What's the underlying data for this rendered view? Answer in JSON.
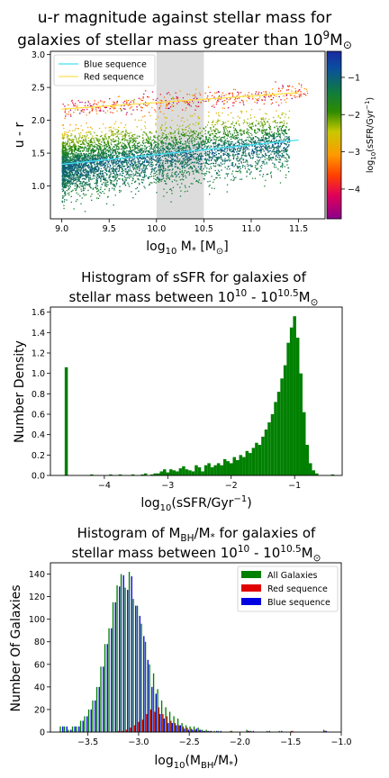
{
  "chart_data": [
    {
      "type": "scatter",
      "title_line1": "u-r magnitude against stellar mass for",
      "title_line2_base": "galaxies of stellar mass greater than 10",
      "title_line2_sup": "9",
      "title_line2_unit": "M",
      "title_line2_unit_sub": "⊙",
      "xlabel_base": "log",
      "xlabel_sub": "10",
      "xlabel_rest": " M",
      "xlabel_sub2": "*",
      "xlabel_unit": " [M",
      "xlabel_unit_sub": "⊙",
      "xlabel_close": "]",
      "ylabel": "u - r",
      "xlim": [
        8.88,
        11.78
      ],
      "ylim": [
        0.5,
        3.05
      ],
      "xticks": [
        "9.0",
        "9.5",
        "10.0",
        "10.5",
        "11.0",
        "11.5"
      ],
      "xtick_values": [
        9.0,
        9.5,
        10.0,
        10.5,
        11.0,
        11.5
      ],
      "yticks": [
        "1.0",
        "1.5",
        "2.0",
        "2.5",
        "3.0"
      ],
      "ytick_values": [
        1.0,
        1.5,
        2.0,
        2.5,
        3.0
      ],
      "shaded_band": [
        10.0,
        10.5
      ],
      "shaded_color": "#dcdcdc",
      "legend": [
        {
          "name": "Blue sequence",
          "color": "#40e0f0"
        },
        {
          "name": "Red sequence",
          "color": "#ffe04a"
        }
      ],
      "blue_sequence_line": {
        "x": [
          9.0,
          11.5
        ],
        "y": [
          1.33,
          1.7
        ]
      },
      "red_sequence_line": {
        "x": [
          9.0,
          11.5
        ],
        "y": [
          2.17,
          2.42
        ]
      },
      "colorbar": {
        "label_base": "log",
        "label_sub": "10",
        "label_rest": "(sSFR/Gyr",
        "label_sup": "−1",
        "label_close": ")",
        "range": [
          -4.8,
          -0.3
        ],
        "ticks": [
          "−1",
          "−2",
          "−3",
          "−4"
        ],
        "tick_values": [
          -1,
          -2,
          -3,
          -4
        ],
        "colormap": [
          "#8a008a",
          "#e0005a",
          "#ff4000",
          "#ff9a00",
          "#c8c800",
          "#2e8b00",
          "#0f7a40",
          "#0a4ea0",
          "#1a2aa0"
        ]
      },
      "point_clusters": [
        {
          "name": "blue-cloud",
          "count": 5200,
          "x_range": [
            9.0,
            11.4
          ],
          "y_center_at_9": 1.33,
          "y_center_at_11_5": 1.7,
          "y_spread": 0.22,
          "ssfr_center": -1.1
        },
        {
          "name": "red-sequence",
          "count": 450,
          "x_range": [
            9.0,
            11.6
          ],
          "y_center_at_9": 2.17,
          "y_center_at_11_5": 2.42,
          "y_spread": 0.07,
          "ssfr_center": -3.8
        }
      ]
    },
    {
      "type": "bar",
      "title_line1": "Histogram of sSFR for galaxies of",
      "title_line2_base": "stellar mass between 10",
      "title_line2_sup1": "10",
      "title_line2_mid": " - 10",
      "title_line2_sup2": "10.5",
      "title_line2_unit": "M",
      "title_line2_unit_sub": "⊙",
      "xlabel_base": "log",
      "xlabel_sub": "10",
      "xlabel_rest": "(sSFR/Gyr",
      "xlabel_sup": "−1",
      "xlabel_close": ")",
      "ylabel": "Number Density",
      "xlim": [
        -4.85,
        -0.25
      ],
      "ylim": [
        0,
        1.65
      ],
      "xticks": [
        "−4",
        "−3",
        "−2",
        "−1"
      ],
      "xtick_values": [
        -4,
        -3,
        -2,
        -1
      ],
      "yticks": [
        "0.0",
        "0.2",
        "0.4",
        "0.6",
        "0.8",
        "1.0",
        "1.2",
        "1.4",
        "1.6"
      ],
      "ytick_values": [
        0.0,
        0.2,
        0.4,
        0.6,
        0.8,
        1.0,
        1.2,
        1.4,
        1.6
      ],
      "bar_color": "#008000",
      "bins": [
        {
          "x": -4.6,
          "v": 1.06
        },
        {
          "x": -4.2,
          "v": 0.01
        },
        {
          "x": -3.9,
          "v": 0.01
        },
        {
          "x": -3.75,
          "v": 0.01
        },
        {
          "x": -3.55,
          "v": 0.01
        },
        {
          "x": -3.4,
          "v": 0.01
        },
        {
          "x": -3.35,
          "v": 0.02
        },
        {
          "x": -3.25,
          "v": 0.01
        },
        {
          "x": -3.2,
          "v": 0.02
        },
        {
          "x": -3.15,
          "v": 0.02
        },
        {
          "x": -3.1,
          "v": 0.04
        },
        {
          "x": -3.05,
          "v": 0.06
        },
        {
          "x": -3.0,
          "v": 0.03
        },
        {
          "x": -2.95,
          "v": 0.06
        },
        {
          "x": -2.9,
          "v": 0.05
        },
        {
          "x": -2.85,
          "v": 0.04
        },
        {
          "x": -2.8,
          "v": 0.07
        },
        {
          "x": -2.75,
          "v": 0.09
        },
        {
          "x": -2.7,
          "v": 0.06
        },
        {
          "x": -2.65,
          "v": 0.05
        },
        {
          "x": -2.6,
          "v": 0.04
        },
        {
          "x": -2.55,
          "v": 0.1
        },
        {
          "x": -2.5,
          "v": 0.08
        },
        {
          "x": -2.45,
          "v": 0.04
        },
        {
          "x": -2.4,
          "v": 0.1
        },
        {
          "x": -2.35,
          "v": 0.12
        },
        {
          "x": -2.3,
          "v": 0.08
        },
        {
          "x": -2.25,
          "v": 0.1
        },
        {
          "x": -2.2,
          "v": 0.12
        },
        {
          "x": -2.15,
          "v": 0.1
        },
        {
          "x": -2.1,
          "v": 0.16
        },
        {
          "x": -2.05,
          "v": 0.14
        },
        {
          "x": -2.0,
          "v": 0.12
        },
        {
          "x": -1.95,
          "v": 0.18
        },
        {
          "x": -1.9,
          "v": 0.15
        },
        {
          "x": -1.85,
          "v": 0.2
        },
        {
          "x": -1.8,
          "v": 0.18
        },
        {
          "x": -1.75,
          "v": 0.24
        },
        {
          "x": -1.7,
          "v": 0.22
        },
        {
          "x": -1.65,
          "v": 0.27
        },
        {
          "x": -1.6,
          "v": 0.32
        },
        {
          "x": -1.55,
          "v": 0.3
        },
        {
          "x": -1.5,
          "v": 0.38
        },
        {
          "x": -1.45,
          "v": 0.45
        },
        {
          "x": -1.4,
          "v": 0.52
        },
        {
          "x": -1.35,
          "v": 0.6
        },
        {
          "x": -1.3,
          "v": 0.72
        },
        {
          "x": -1.25,
          "v": 0.82
        },
        {
          "x": -1.2,
          "v": 0.95
        },
        {
          "x": -1.15,
          "v": 1.08
        },
        {
          "x": -1.1,
          "v": 1.3
        },
        {
          "x": -1.05,
          "v": 1.45
        },
        {
          "x": -1.0,
          "v": 1.56
        },
        {
          "x": -0.95,
          "v": 1.35
        },
        {
          "x": -0.9,
          "v": 1.0
        },
        {
          "x": -0.85,
          "v": 0.62
        },
        {
          "x": -0.8,
          "v": 0.3
        },
        {
          "x": -0.75,
          "v": 0.12
        },
        {
          "x": -0.7,
          "v": 0.05
        },
        {
          "x": -0.65,
          "v": 0.02
        },
        {
          "x": -0.4,
          "v": 0.01
        }
      ]
    },
    {
      "type": "bar",
      "title_line1_base": "Histogram of M",
      "title_line1_sub": "BH",
      "title_line1_rest": "/M",
      "title_line1_sub2": "*",
      "title_line1_end": " for galaxies of",
      "title_line2_base": "stellar mass between 10",
      "title_line2_sup1": "10",
      "title_line2_mid": " - 10",
      "title_line2_sup2": "10.5",
      "title_line2_unit": "M",
      "title_line2_unit_sub": "⊙",
      "xlabel_base": "log",
      "xlabel_sub": "10",
      "xlabel_rest": "(M",
      "xlabel_sub2": "BH",
      "xlabel_rest2": "/M",
      "xlabel_sub3": "*",
      "xlabel_close": ")",
      "ylabel": "Number Of Galaxies",
      "xlim": [
        -3.87,
        -1.0
      ],
      "ylim": [
        0,
        150
      ],
      "xticks": [
        "−3.5",
        "−3.0",
        "−2.5",
        "−2.0",
        "−1.5",
        "−1.0"
      ],
      "xtick_values": [
        -3.5,
        -3.0,
        -2.5,
        -2.0,
        -1.5,
        -1.0
      ],
      "yticks": [
        "0",
        "20",
        "40",
        "60",
        "80",
        "100",
        "120",
        "140"
      ],
      "ytick_values": [
        0,
        20,
        40,
        60,
        80,
        100,
        120,
        140
      ],
      "categories": [
        -3.76,
        -3.72,
        -3.68,
        -3.64,
        -3.6,
        -3.56,
        -3.52,
        -3.48,
        -3.44,
        -3.4,
        -3.36,
        -3.32,
        -3.28,
        -3.24,
        -3.2,
        -3.16,
        -3.12,
        -3.08,
        -3.04,
        -3.0,
        -2.96,
        -2.92,
        -2.88,
        -2.84,
        -2.8,
        -2.76,
        -2.72,
        -2.68,
        -2.64,
        -2.6,
        -2.56,
        -2.52,
        -2.48,
        -2.44,
        -2.4,
        -2.36,
        -2.32,
        -2.28,
        -2.24,
        -2.2,
        -2.08,
        -1.92,
        -1.88,
        -1.72,
        -1.6,
        -1.48,
        -1.16
      ],
      "series": [
        {
          "name": "All Galaxies",
          "color": "#008000",
          "values": [
            5,
            5,
            2,
            5,
            5,
            10,
            14,
            20,
            28,
            40,
            58,
            78,
            92,
            115,
            130,
            140,
            128,
            142,
            118,
            112,
            96,
            80,
            60,
            52,
            38,
            28,
            22,
            18,
            14,
            12,
            8,
            6,
            5,
            5,
            4,
            2,
            2,
            1,
            1,
            1,
            1,
            2,
            1,
            1,
            1,
            1,
            2
          ]
        },
        {
          "name": "Red sequence",
          "color": "#e00000",
          "values": [
            0,
            0,
            0,
            0,
            0,
            0,
            0,
            0,
            0,
            0,
            0,
            0,
            0,
            0,
            1,
            1,
            2,
            4,
            6,
            9,
            11,
            16,
            20,
            18,
            22,
            16,
            14,
            10,
            8,
            6,
            5,
            4,
            3,
            2,
            2,
            1,
            1,
            1,
            0,
            0,
            1,
            1,
            0,
            0,
            0,
            1,
            1
          ]
        },
        {
          "name": "Blue sequence",
          "color": "#0000e0",
          "values": [
            5,
            5,
            2,
            5,
            5,
            10,
            14,
            20,
            28,
            40,
            58,
            78,
            92,
            115,
            129,
            139,
            126,
            138,
            112,
            103,
            85,
            64,
            40,
            34,
            16,
            12,
            8,
            8,
            6,
            6,
            3,
            2,
            2,
            3,
            2,
            1,
            1,
            0,
            1,
            1,
            0,
            1,
            1,
            1,
            1,
            0,
            1
          ]
        }
      ]
    }
  ]
}
